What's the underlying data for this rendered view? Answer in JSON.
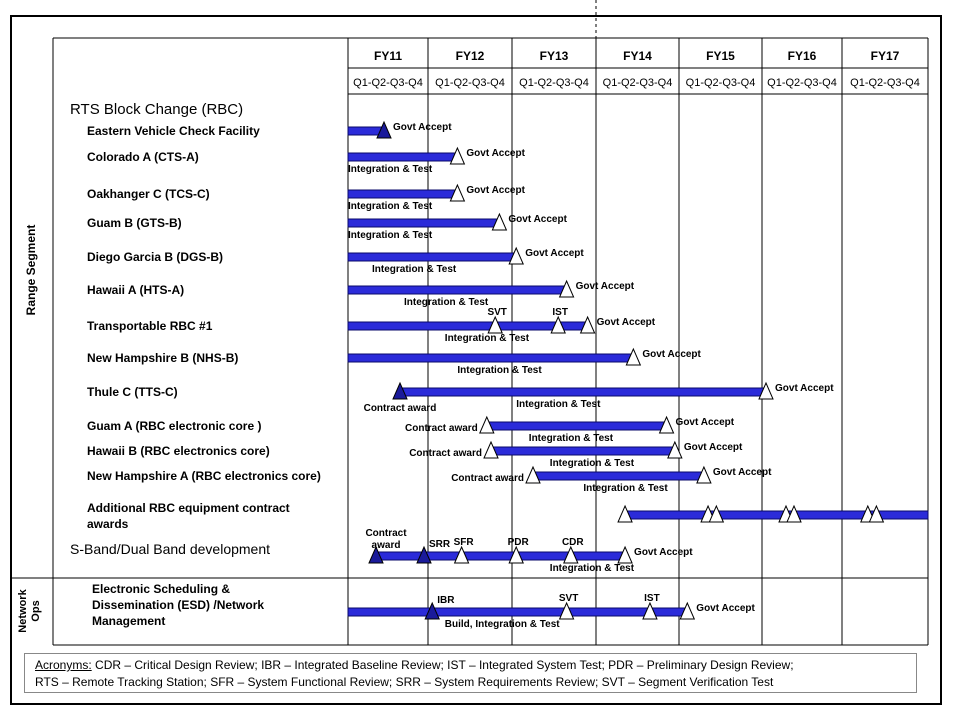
{
  "side_labels": {
    "range": "Range Segment",
    "network": "Network Ops"
  },
  "fiscal_years": [
    "FY11",
    "FY12",
    "FY13",
    "FY14",
    "FY15",
    "FY16",
    "FY17"
  ],
  "quarter_label": "Q1-Q2-Q3-Q4",
  "section_titles": {
    "rbc": "RTS Block Change (RBC)",
    "sband": "S-Band/Dual Band development"
  },
  "rows": [
    {
      "name": "Eastern Vehicle Check Facility",
      "bars": [
        {
          "start": 2011.0,
          "end": 2011.45
        }
      ],
      "markers": [
        {
          "t": 2011.45,
          "type": "filled",
          "label": "Govt Accept",
          "lpos": "right"
        }
      ],
      "bar_labels": []
    },
    {
      "name": "Colorado A (CTS-A)",
      "bars": [
        {
          "start": 2011.0,
          "end": 2012.35
        }
      ],
      "markers": [
        {
          "t": 2012.35,
          "type": "open",
          "label": "Govt Accept",
          "lpos": "right"
        }
      ],
      "bar_labels": [
        {
          "t": 2011.0,
          "text": "Integration & Test"
        }
      ]
    },
    {
      "name": "Oakhanger C (TCS-C)",
      "bars": [
        {
          "start": 2011.0,
          "end": 2012.35
        }
      ],
      "markers": [
        {
          "t": 2012.35,
          "type": "open",
          "label": "Govt Accept",
          "lpos": "right"
        }
      ],
      "bar_labels": [
        {
          "t": 2011.0,
          "text": "Integration & Test"
        }
      ]
    },
    {
      "name": "Guam B (GTS-B)",
      "bars": [
        {
          "start": 2011.0,
          "end": 2012.85
        }
      ],
      "markers": [
        {
          "t": 2012.85,
          "type": "open",
          "label": "Govt Accept",
          "lpos": "right"
        }
      ],
      "bar_labels": [
        {
          "t": 2011.0,
          "text": "Integration & Test"
        }
      ]
    },
    {
      "name": "Diego Garcia B (DGS-B)",
      "bars": [
        {
          "start": 2011.0,
          "end": 2013.05
        }
      ],
      "markers": [
        {
          "t": 2013.05,
          "type": "open",
          "label": "Govt Accept",
          "lpos": "right"
        }
      ],
      "bar_labels": [
        {
          "t": 2011.3,
          "text": "Integration & Test"
        }
      ]
    },
    {
      "name": "Hawaii A (HTS-A)",
      "bars": [
        {
          "start": 2011.0,
          "end": 2013.65
        }
      ],
      "markers": [
        {
          "t": 2013.65,
          "type": "open",
          "label": "Govt Accept",
          "lpos": "right"
        }
      ],
      "bar_labels": [
        {
          "t": 2011.7,
          "text": "Integration & Test"
        }
      ]
    },
    {
      "name": "Transportable RBC #1",
      "bars": [
        {
          "start": 2011.0,
          "end": 2013.9
        }
      ],
      "markers": [
        {
          "t": 2012.8,
          "type": "open",
          "label": "SVT",
          "lpos": "above"
        },
        {
          "t": 2013.55,
          "type": "open",
          "label": "IST",
          "lpos": "above"
        },
        {
          "t": 2013.9,
          "type": "open",
          "label": "Govt Accept",
          "lpos": "right"
        }
      ],
      "bar_labels": [
        {
          "t": 2012.2,
          "text": "Integration & Test"
        }
      ]
    },
    {
      "name": "New Hampshire B (NHS-B)",
      "bars": [
        {
          "start": 2011.0,
          "end": 2014.45
        }
      ],
      "markers": [
        {
          "t": 2014.45,
          "type": "open",
          "label": "Govt Accept",
          "lpos": "right"
        }
      ],
      "bar_labels": [
        {
          "t": 2012.35,
          "text": "Integration & Test"
        }
      ]
    },
    {
      "name": "Thule C (TTS-C)",
      "bars": [
        {
          "start": 2011.65,
          "end": 2016.05
        }
      ],
      "markers": [
        {
          "t": 2011.65,
          "type": "filled",
          "label": "Contract award",
          "lpos": "below"
        },
        {
          "t": 2016.05,
          "type": "open",
          "label": "Govt Accept",
          "lpos": "right"
        }
      ],
      "bar_labels": [
        {
          "t": 2013.05,
          "text": "Integration & Test"
        }
      ]
    },
    {
      "name": "Guam A (RBC electronic core )",
      "bars": [
        {
          "start": 2012.7,
          "end": 2014.85
        }
      ],
      "markers": [
        {
          "t": 2012.7,
          "type": "open",
          "label": "Contract award",
          "lpos": "left"
        },
        {
          "t": 2014.85,
          "type": "open",
          "label": "Govt Accept",
          "lpos": "right"
        }
      ],
      "bar_labels": [
        {
          "t": 2013.2,
          "text": "Integration & Test"
        }
      ]
    },
    {
      "name": "Hawaii B (RBC electronics core)",
      "bars": [
        {
          "start": 2012.75,
          "end": 2014.95
        }
      ],
      "markers": [
        {
          "t": 2012.75,
          "type": "open",
          "label": "Contract award",
          "lpos": "left"
        },
        {
          "t": 2014.95,
          "type": "open",
          "label": "Govt Accept",
          "lpos": "right"
        }
      ],
      "bar_labels": [
        {
          "t": 2013.45,
          "text": "Integration & Test"
        }
      ]
    },
    {
      "name": "New Hampshire A (RBC electronics core)",
      "bars": [
        {
          "start": 2013.25,
          "end": 2015.3
        }
      ],
      "markers": [
        {
          "t": 2013.25,
          "type": "open",
          "label": "Contract award",
          "lpos": "left"
        },
        {
          "t": 2015.3,
          "type": "open",
          "label": "Govt Accept",
          "lpos": "right"
        }
      ],
      "bar_labels": [
        {
          "t": 2013.85,
          "text": "Integration & Test"
        }
      ]
    },
    {
      "name": "Additional RBC equipment contract awards",
      "bars": [
        {
          "start": 2014.35,
          "end": 2018.0
        }
      ],
      "markers": [
        {
          "t": 2014.35,
          "type": "open",
          "label": "",
          "lpos": "right"
        },
        {
          "t": 2015.35,
          "type": "open",
          "label": "",
          "lpos": "right"
        },
        {
          "t": 2015.45,
          "type": "open",
          "label": "",
          "lpos": "right"
        },
        {
          "t": 2016.3,
          "type": "open",
          "label": "",
          "lpos": "right"
        },
        {
          "t": 2016.4,
          "type": "open",
          "label": "",
          "lpos": "right"
        },
        {
          "t": 2017.3,
          "type": "open",
          "label": "",
          "lpos": "right"
        },
        {
          "t": 2017.4,
          "type": "open",
          "label": "",
          "lpos": "right"
        }
      ],
      "bar_labels": []
    },
    {
      "name": "S-Band/Dual Band development",
      "bars": [
        {
          "start": 2011.35,
          "end": 2014.35
        }
      ],
      "markers": [
        {
          "t": 2011.35,
          "type": "filled",
          "label": "Contract award",
          "lpos": "above"
        },
        {
          "t": 2011.95,
          "type": "filled",
          "label": "SRR",
          "lpos": "right-up"
        },
        {
          "t": 2012.4,
          "type": "open",
          "label": "SFR",
          "lpos": "above"
        },
        {
          "t": 2013.05,
          "type": "open",
          "label": "PDR",
          "lpos": "above"
        },
        {
          "t": 2013.7,
          "type": "open",
          "label": "CDR",
          "lpos": "above"
        },
        {
          "t": 2014.35,
          "type": "open",
          "label": "Govt Accept",
          "lpos": "right"
        }
      ],
      "bar_labels": [
        {
          "t": 2013.45,
          "text": "Integration & Test"
        }
      ]
    },
    {
      "name": "Electronic Scheduling & Dissemination (ESD) /Network Management",
      "bars": [
        {
          "start": 2011.0,
          "end": 2015.1
        }
      ],
      "markers": [
        {
          "t": 2012.05,
          "type": "filled",
          "label": "IBR",
          "lpos": "right-up"
        },
        {
          "t": 2013.65,
          "type": "open",
          "label": "SVT",
          "lpos": "above"
        },
        {
          "t": 2014.65,
          "type": "open",
          "label": "IST",
          "lpos": "above"
        },
        {
          "t": 2015.1,
          "type": "open",
          "label": "Govt Accept",
          "lpos": "right"
        }
      ],
      "bar_labels": [
        {
          "t": 2012.2,
          "text": "Build, Integration & Test"
        }
      ]
    }
  ],
  "legend": {
    "label": "Acronyms:",
    "line1": " CDR – Critical Design Review;  IBR – Integrated Baseline Review;  IST – Integrated System Test;  PDR – Preliminary  Design Review;",
    "line2": "RTS – Remote Tracking Station;  SFR – System Functional Review;  SRR – System Requirements  Review;  SVT – Segment Verification Test"
  },
  "colors": {
    "bar": "#2b2bd9",
    "bar_edge": "#0a0a6a",
    "filled_marker": "#1a1a9a",
    "grid": "#000000"
  }
}
